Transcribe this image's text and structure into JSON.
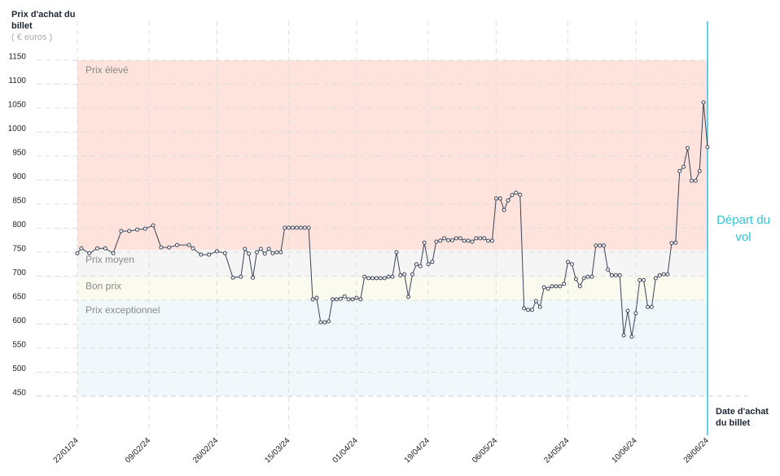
{
  "chart_data": {
    "type": "line",
    "y_axis_title": "Prix d'achat du billet",
    "y_axis_unit": "( € euros )",
    "x_axis_title": "Date d'achat du billet",
    "annotation": "Départ du vol",
    "departure": "28/06/24",
    "color": "#3b4358",
    "ylim": [
      450,
      1150
    ],
    "yticks": [
      450,
      500,
      550,
      600,
      650,
      700,
      750,
      800,
      850,
      900,
      950,
      1000,
      1050,
      1100,
      1150
    ],
    "xlim": [
      "22/01/24",
      "28/06/24"
    ],
    "xticks": [
      "22/01/24",
      "09/02/24",
      "26/02/24",
      "15/03/24",
      "01/04/24",
      "19/04/24",
      "06/05/24",
      "24/05/24",
      "10/06/24",
      "28/06/24"
    ],
    "grid": true,
    "bands": [
      {
        "label": "Prix élevé",
        "from": 755,
        "to": 1150,
        "color": "#fde3dc"
      },
      {
        "label": "Prix moyen",
        "from": 700,
        "to": 755,
        "color": "#f5f5f5"
      },
      {
        "label": "Bon prix",
        "from": 650,
        "to": 700,
        "color": "#fafaee"
      },
      {
        "label": "Prix exceptionnel",
        "from": 450,
        "to": 650,
        "color": "#f0f8fc"
      }
    ],
    "x": [
      "22/01/24",
      "23/01/24",
      "25/01/24",
      "27/01/24",
      "29/01/24",
      "31/01/24",
      "02/02/24",
      "04/02/24",
      "06/02/24",
      "08/02/24",
      "10/02/24",
      "12/02/24",
      "14/02/24",
      "16/02/24",
      "19/02/24",
      "20/02/24",
      "22/02/24",
      "24/02/24",
      "26/02/24",
      "28/02/24",
      "01/03/24",
      "03/03/24",
      "04/03/24",
      "05/03/24",
      "06/03/24",
      "07/03/24",
      "08/03/24",
      "09/03/24",
      "10/03/24",
      "11/03/24",
      "12/03/24",
      "13/03/24",
      "14/03/24",
      "15/03/24",
      "16/03/24",
      "17/03/24",
      "18/03/24",
      "19/03/24",
      "20/03/24",
      "21/03/24",
      "22/03/24",
      "23/03/24",
      "24/03/24",
      "25/03/24",
      "26/03/24",
      "27/03/24",
      "28/03/24",
      "29/03/24",
      "30/03/24",
      "31/03/24",
      "01/04/24",
      "02/04/24",
      "03/04/24",
      "04/04/24",
      "05/04/24",
      "06/04/24",
      "07/04/24",
      "08/04/24",
      "09/04/24",
      "10/04/24",
      "11/04/24",
      "12/04/24",
      "13/04/24",
      "14/04/24",
      "15/04/24",
      "16/04/24",
      "17/04/24",
      "18/04/24",
      "19/04/24",
      "20/04/24",
      "21/04/24",
      "22/04/24",
      "23/04/24",
      "24/04/24",
      "25/04/24",
      "26/04/24",
      "27/04/24",
      "28/04/24",
      "29/04/24",
      "30/04/24",
      "01/05/24",
      "02/05/24",
      "03/05/24",
      "04/05/24",
      "05/05/24",
      "06/05/24",
      "07/05/24",
      "08/05/24",
      "09/05/24",
      "10/05/24",
      "11/05/24",
      "12/05/24",
      "13/05/24",
      "14/05/24",
      "15/05/24",
      "16/05/24",
      "17/05/24",
      "18/05/24",
      "19/05/24",
      "20/05/24",
      "21/05/24",
      "22/05/24",
      "23/05/24",
      "24/05/24",
      "25/05/24",
      "26/05/24",
      "27/05/24",
      "28/05/24",
      "29/05/24",
      "30/05/24",
      "31/05/24",
      "01/06/24",
      "02/06/24",
      "03/06/24",
      "04/06/24",
      "05/06/24",
      "06/06/24",
      "07/06/24",
      "08/06/24",
      "09/06/24",
      "10/06/24",
      "11/06/24",
      "12/06/24",
      "13/06/24",
      "14/06/24",
      "15/06/24",
      "16/06/24",
      "17/06/24",
      "18/06/24",
      "19/06/24",
      "20/06/24",
      "21/06/24",
      "22/06/24",
      "23/06/24",
      "24/06/24",
      "25/06/24",
      "26/06/24",
      "27/06/24",
      "28/06/24"
    ],
    "values": [
      748,
      758,
      748,
      758,
      758,
      748,
      794,
      794,
      797,
      799,
      806,
      760,
      760,
      765,
      765,
      758,
      745,
      745,
      752,
      748,
      697,
      699,
      757,
      747,
      697,
      750,
      757,
      747,
      757,
      748,
      750,
      750,
      801,
      801,
      801,
      801,
      801,
      801,
      801,
      652,
      655,
      604,
      604,
      606,
      652,
      652,
      653,
      658,
      652,
      652,
      655,
      652,
      699,
      696,
      696,
      696,
      696,
      696,
      699,
      699,
      750,
      702,
      704,
      657,
      704,
      725,
      721,
      770,
      725,
      730,
      772,
      774,
      779,
      775,
      775,
      779,
      779,
      774,
      774,
      772,
      779,
      779,
      779,
      774,
      774,
      862,
      862,
      838,
      858,
      869,
      874,
      870,
      633,
      630,
      630,
      648,
      636,
      677,
      674,
      679,
      679,
      679,
      684,
      730,
      725,
      694,
      679,
      696,
      699,
      699,
      764,
      764,
      764,
      714,
      702,
      702,
      702,
      577,
      628,
      574,
      623,
      692,
      692,
      636,
      636,
      696,
      702,
      704,
      704,
      769,
      770,
      919,
      928,
      967,
      899,
      899,
      919,
      1062,
      969
    ]
  }
}
